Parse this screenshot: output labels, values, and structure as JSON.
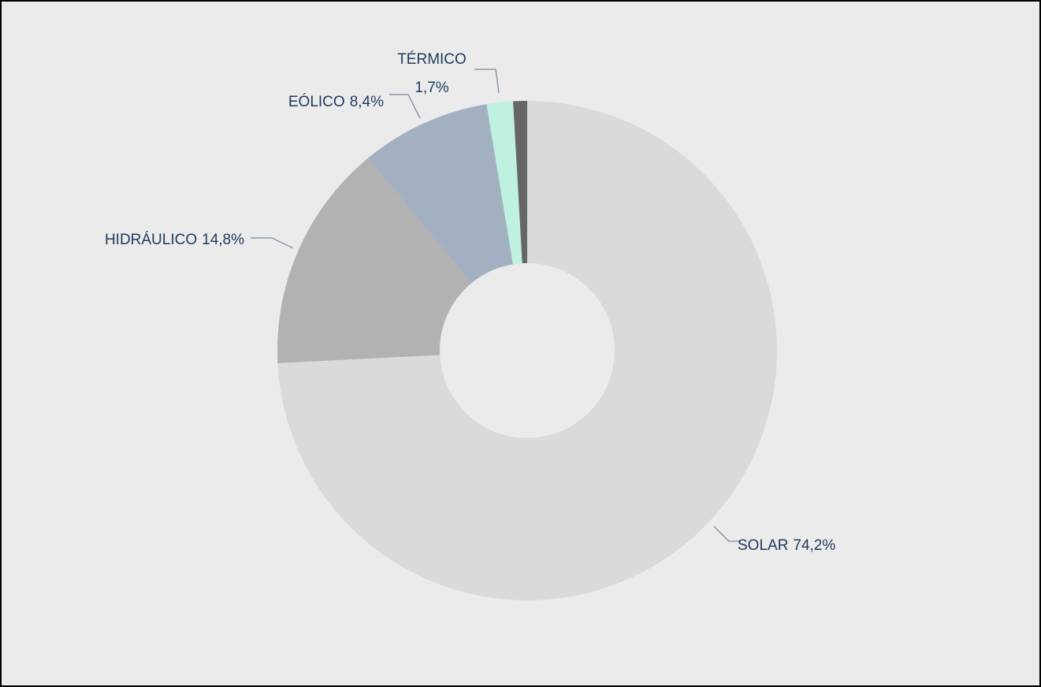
{
  "chart_data": {
    "type": "donut",
    "categories": [
      "SOLAR",
      "HIDRÁULICO",
      "EÓLICO",
      "TÉRMICO",
      null
    ],
    "values": [
      74.2,
      14.8,
      8.4,
      1.7,
      0.9
    ],
    "value_labels": [
      "74,2%",
      "14,8%",
      "8,4%",
      "1,7%",
      null
    ],
    "colors": [
      "#dadada",
      "#b2b2b2",
      "#a2b0c1",
      "#c0f0e0",
      "#666666"
    ]
  }
}
